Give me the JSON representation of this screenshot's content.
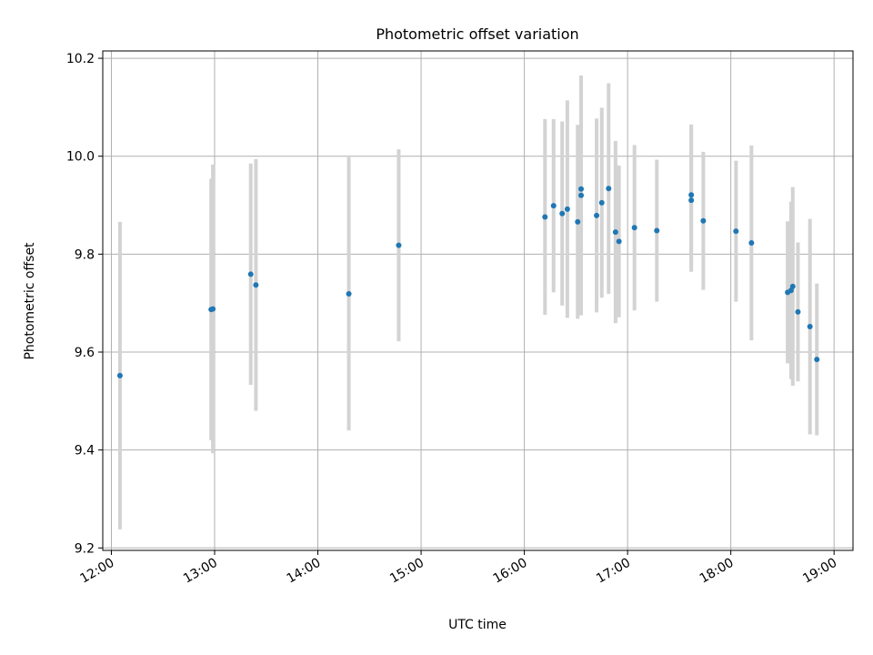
{
  "chart_data": {
    "type": "scatter",
    "title": "Photometric offset variation",
    "xlabel": "UTC time",
    "ylabel": "Photometric offset",
    "x_ticks": [
      "12:00",
      "13:00",
      "14:00",
      "15:00",
      "16:00",
      "17:00",
      "18:00",
      "19:00"
    ],
    "y_ticks": [
      "9.2",
      "9.4",
      "9.6",
      "9.8",
      "10.0",
      "10.2"
    ],
    "xlim": [
      "11:55",
      "19:11"
    ],
    "ylim": [
      9.195,
      10.215
    ],
    "grid": true,
    "legend": "none",
    "colors": {
      "points": "#1f77b4",
      "error_bars": "#d3d3d3",
      "grid": "#b0b0b0"
    },
    "points": [
      {
        "t": "12:05",
        "y": 9.552,
        "err": 0.314
      },
      {
        "t": "12:58",
        "y": 9.687,
        "err": 0.267
      },
      {
        "t": "12:59",
        "y": 9.688,
        "err": 0.295
      },
      {
        "t": "13:21",
        "y": 9.759,
        "err": 0.226
      },
      {
        "t": "13:24",
        "y": 9.737,
        "err": 0.257
      },
      {
        "t": "14:18",
        "y": 9.719,
        "err": 0.279
      },
      {
        "t": "14:47",
        "y": 9.818,
        "err": 0.196
      },
      {
        "t": "16:12",
        "y": 9.876,
        "err": 0.2
      },
      {
        "t": "16:17",
        "y": 9.899,
        "err": 0.177
      },
      {
        "t": "16:22",
        "y": 9.883,
        "err": 0.188
      },
      {
        "t": "16:25",
        "y": 9.892,
        "err": 0.222
      },
      {
        "t": "16:31",
        "y": 9.866,
        "err": 0.198
      },
      {
        "t": "16:33",
        "y": 9.933,
        "err": 0.218
      },
      {
        "t": "16:33",
        "y": 9.92,
        "err": 0.245
      },
      {
        "t": "16:42",
        "y": 9.879,
        "err": 0.198
      },
      {
        "t": "16:45",
        "y": 9.905,
        "err": 0.194
      },
      {
        "t": "16:49",
        "y": 9.934,
        "err": 0.215
      },
      {
        "t": "16:53",
        "y": 9.845,
        "err": 0.186
      },
      {
        "t": "16:55",
        "y": 9.826,
        "err": 0.155
      },
      {
        "t": "17:04",
        "y": 9.854,
        "err": 0.169
      },
      {
        "t": "17:17",
        "y": 9.848,
        "err": 0.145
      },
      {
        "t": "17:37",
        "y": 9.921,
        "err": 0.144
      },
      {
        "t": "17:37",
        "y": 9.91,
        "err": 0.146
      },
      {
        "t": "17:44",
        "y": 9.868,
        "err": 0.141
      },
      {
        "t": "18:03",
        "y": 9.847,
        "err": 0.144
      },
      {
        "t": "18:12",
        "y": 9.823,
        "err": 0.199
      },
      {
        "t": "18:33",
        "y": 9.722,
        "err": 0.145
      },
      {
        "t": "18:35",
        "y": 9.726,
        "err": 0.181
      },
      {
        "t": "18:36",
        "y": 9.734,
        "err": 0.203
      },
      {
        "t": "18:39",
        "y": 9.682,
        "err": 0.142
      },
      {
        "t": "18:46",
        "y": 9.652,
        "err": 0.22
      },
      {
        "t": "18:50",
        "y": 9.585,
        "err": 0.155
      }
    ]
  }
}
